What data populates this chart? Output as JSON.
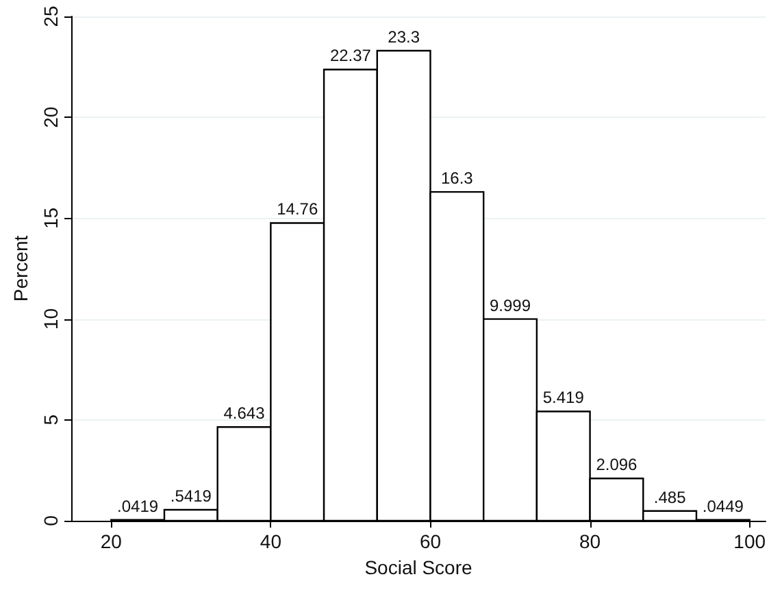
{
  "chart_data": {
    "type": "histogram",
    "xlabel": "Social Score",
    "ylabel": "Percent",
    "bins": [
      20,
      26.667,
      33.333,
      40,
      46.667,
      53.333,
      60,
      66.667,
      73.333,
      80,
      86.667,
      93.333,
      100
    ],
    "values": [
      0.0419,
      0.5419,
      4.643,
      14.76,
      22.37,
      23.3,
      16.3,
      9.999,
      5.419,
      2.096,
      0.485,
      0.0449
    ],
    "value_labels": [
      ".0419",
      ".5419",
      "4.643",
      "14.76",
      "22.37",
      "23.3",
      "16.3",
      "9.999",
      "5.419",
      "2.096",
      ".485",
      ".0449"
    ],
    "color": "#ffffff",
    "xlim": [
      15,
      102
    ],
    "xticks": [
      20,
      40,
      60,
      80,
      100
    ],
    "ylim": [
      0,
      25
    ],
    "yticks": [
      0,
      5,
      10,
      15,
      20,
      25
    ],
    "grid": "y"
  }
}
